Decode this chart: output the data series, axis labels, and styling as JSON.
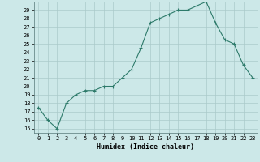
{
  "x": [
    0,
    1,
    2,
    3,
    4,
    5,
    6,
    7,
    8,
    9,
    10,
    11,
    12,
    13,
    14,
    15,
    16,
    17,
    18,
    19,
    20,
    21,
    22,
    23
  ],
  "y": [
    17.5,
    16.0,
    15.0,
    18.0,
    19.0,
    19.5,
    19.5,
    20.0,
    20.0,
    21.0,
    22.0,
    24.5,
    27.5,
    28.0,
    28.5,
    29.0,
    29.0,
    29.5,
    30.0,
    27.5,
    25.5,
    25.0,
    22.5,
    21.0
  ],
  "line_color": "#2d7a6a",
  "marker": "+",
  "marker_size": 3,
  "marker_lw": 0.8,
  "line_width": 0.8,
  "bg_color": "#cce8e8",
  "grid_color": "#aacaca",
  "xlabel": "Humidex (Indice chaleur)",
  "ylabel_ticks": [
    15,
    16,
    17,
    18,
    19,
    20,
    21,
    22,
    23,
    24,
    25,
    26,
    27,
    28,
    29
  ],
  "xlim": [
    -0.5,
    23.5
  ],
  "ylim": [
    14.5,
    30.0
  ],
  "tick_fontsize": 5,
  "xlabel_fontsize": 6
}
